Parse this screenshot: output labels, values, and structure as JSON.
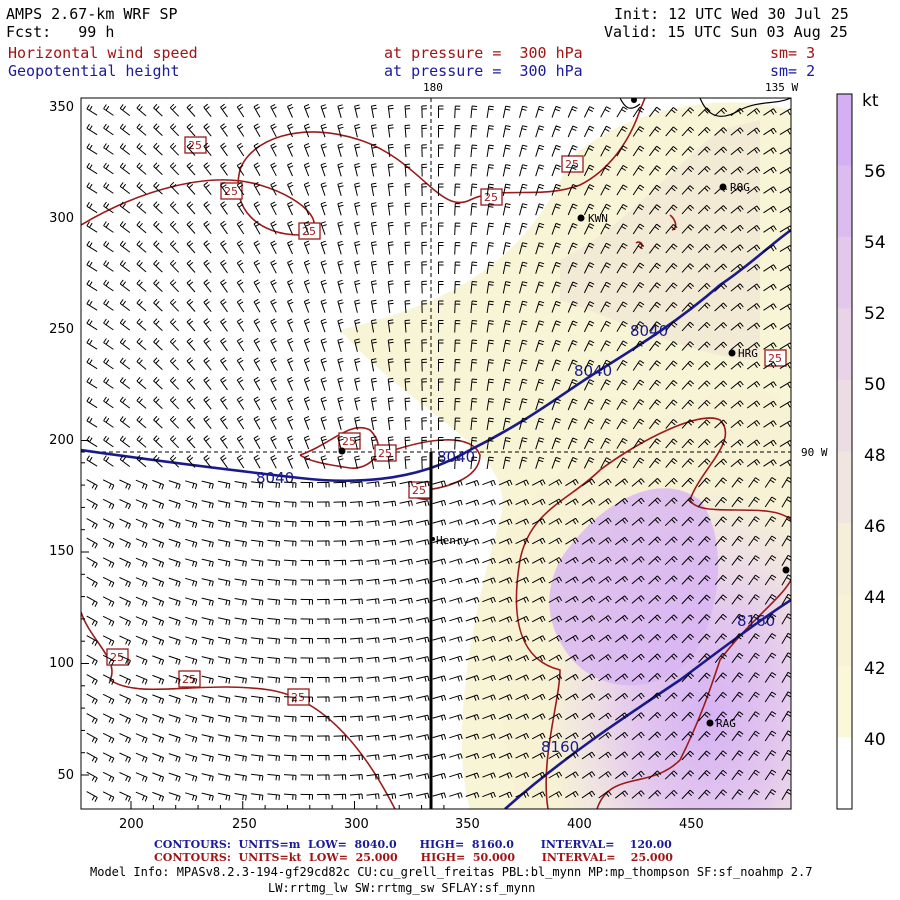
{
  "header": {
    "model": "AMPS 2.67-km WRF SP",
    "fcst": "Fcst:   99 h",
    "init": "Init: 12 UTC Wed 30 Jul 25",
    "valid": "Valid: 15 UTC Sun 03 Aug 25",
    "field1": {
      "name": "Horizontal wind speed",
      "level": "at pressure =  300 hPa",
      "sm": "sm= 3"
    },
    "field2": {
      "name": "Geopotential height",
      "level": "at pressure =  300 hPa",
      "sm": "sm= 2"
    }
  },
  "map": {
    "meridian_labels": {
      "top_180": "180",
      "top_135w": "135 W",
      "right_90w": "90 W"
    },
    "x_ticks": [
      "200",
      "250",
      "300",
      "350",
      "400",
      "450"
    ],
    "y_ticks": [
      "50",
      "100",
      "150",
      "200",
      "250",
      "300",
      "350"
    ],
    "stations": [
      "KWN",
      "ROG",
      "HRG",
      "Henry",
      "RAG"
    ],
    "height_contour_labels": [
      "8040",
      "8040",
      "8040",
      "8040",
      "8160",
      "8160"
    ],
    "wind_contour_label": "25",
    "colors": {
      "wind_contour": "#9c1a1a",
      "height_contour": "#1a1a8c",
      "shade_low": "#f7f3d2",
      "shade_mid": "#eedfe6",
      "shade_high": "#d9b6f0"
    }
  },
  "colorbar": {
    "unit": "kt",
    "ticks": [
      "56",
      "54",
      "52",
      "50",
      "48",
      "46",
      "44",
      "42",
      "40"
    ],
    "colors": [
      "#d4b0f2",
      "#dcbcef",
      "#e4c8ec",
      "#e9d3e9",
      "#ecdde4",
      "#f1e6df",
      "#f5eed9",
      "#f8f3d6",
      "#fbf8d9",
      "#ffffff"
    ]
  },
  "footer": {
    "contours1": "CONTOURS:  UNITS=m  LOW=  8040.0      HIGH=  8160.0       INTERVAL=    120.00",
    "contours2": "CONTOURS:  UNITS=kt  LOW=  25.000      HIGH=  50.000       INTERVAL=    25.000",
    "model_info1": "Model Info: MPASv8.2.3-194-gf29cd82c CU:cu_grell_freitas PBL:bl_mynn MP:mp_thompson SF:sf_noahmp 2.7",
    "model_info2": "LW:rrtmg_lw SW:rrtmg_sw SFLAY:sf_mynn"
  }
}
